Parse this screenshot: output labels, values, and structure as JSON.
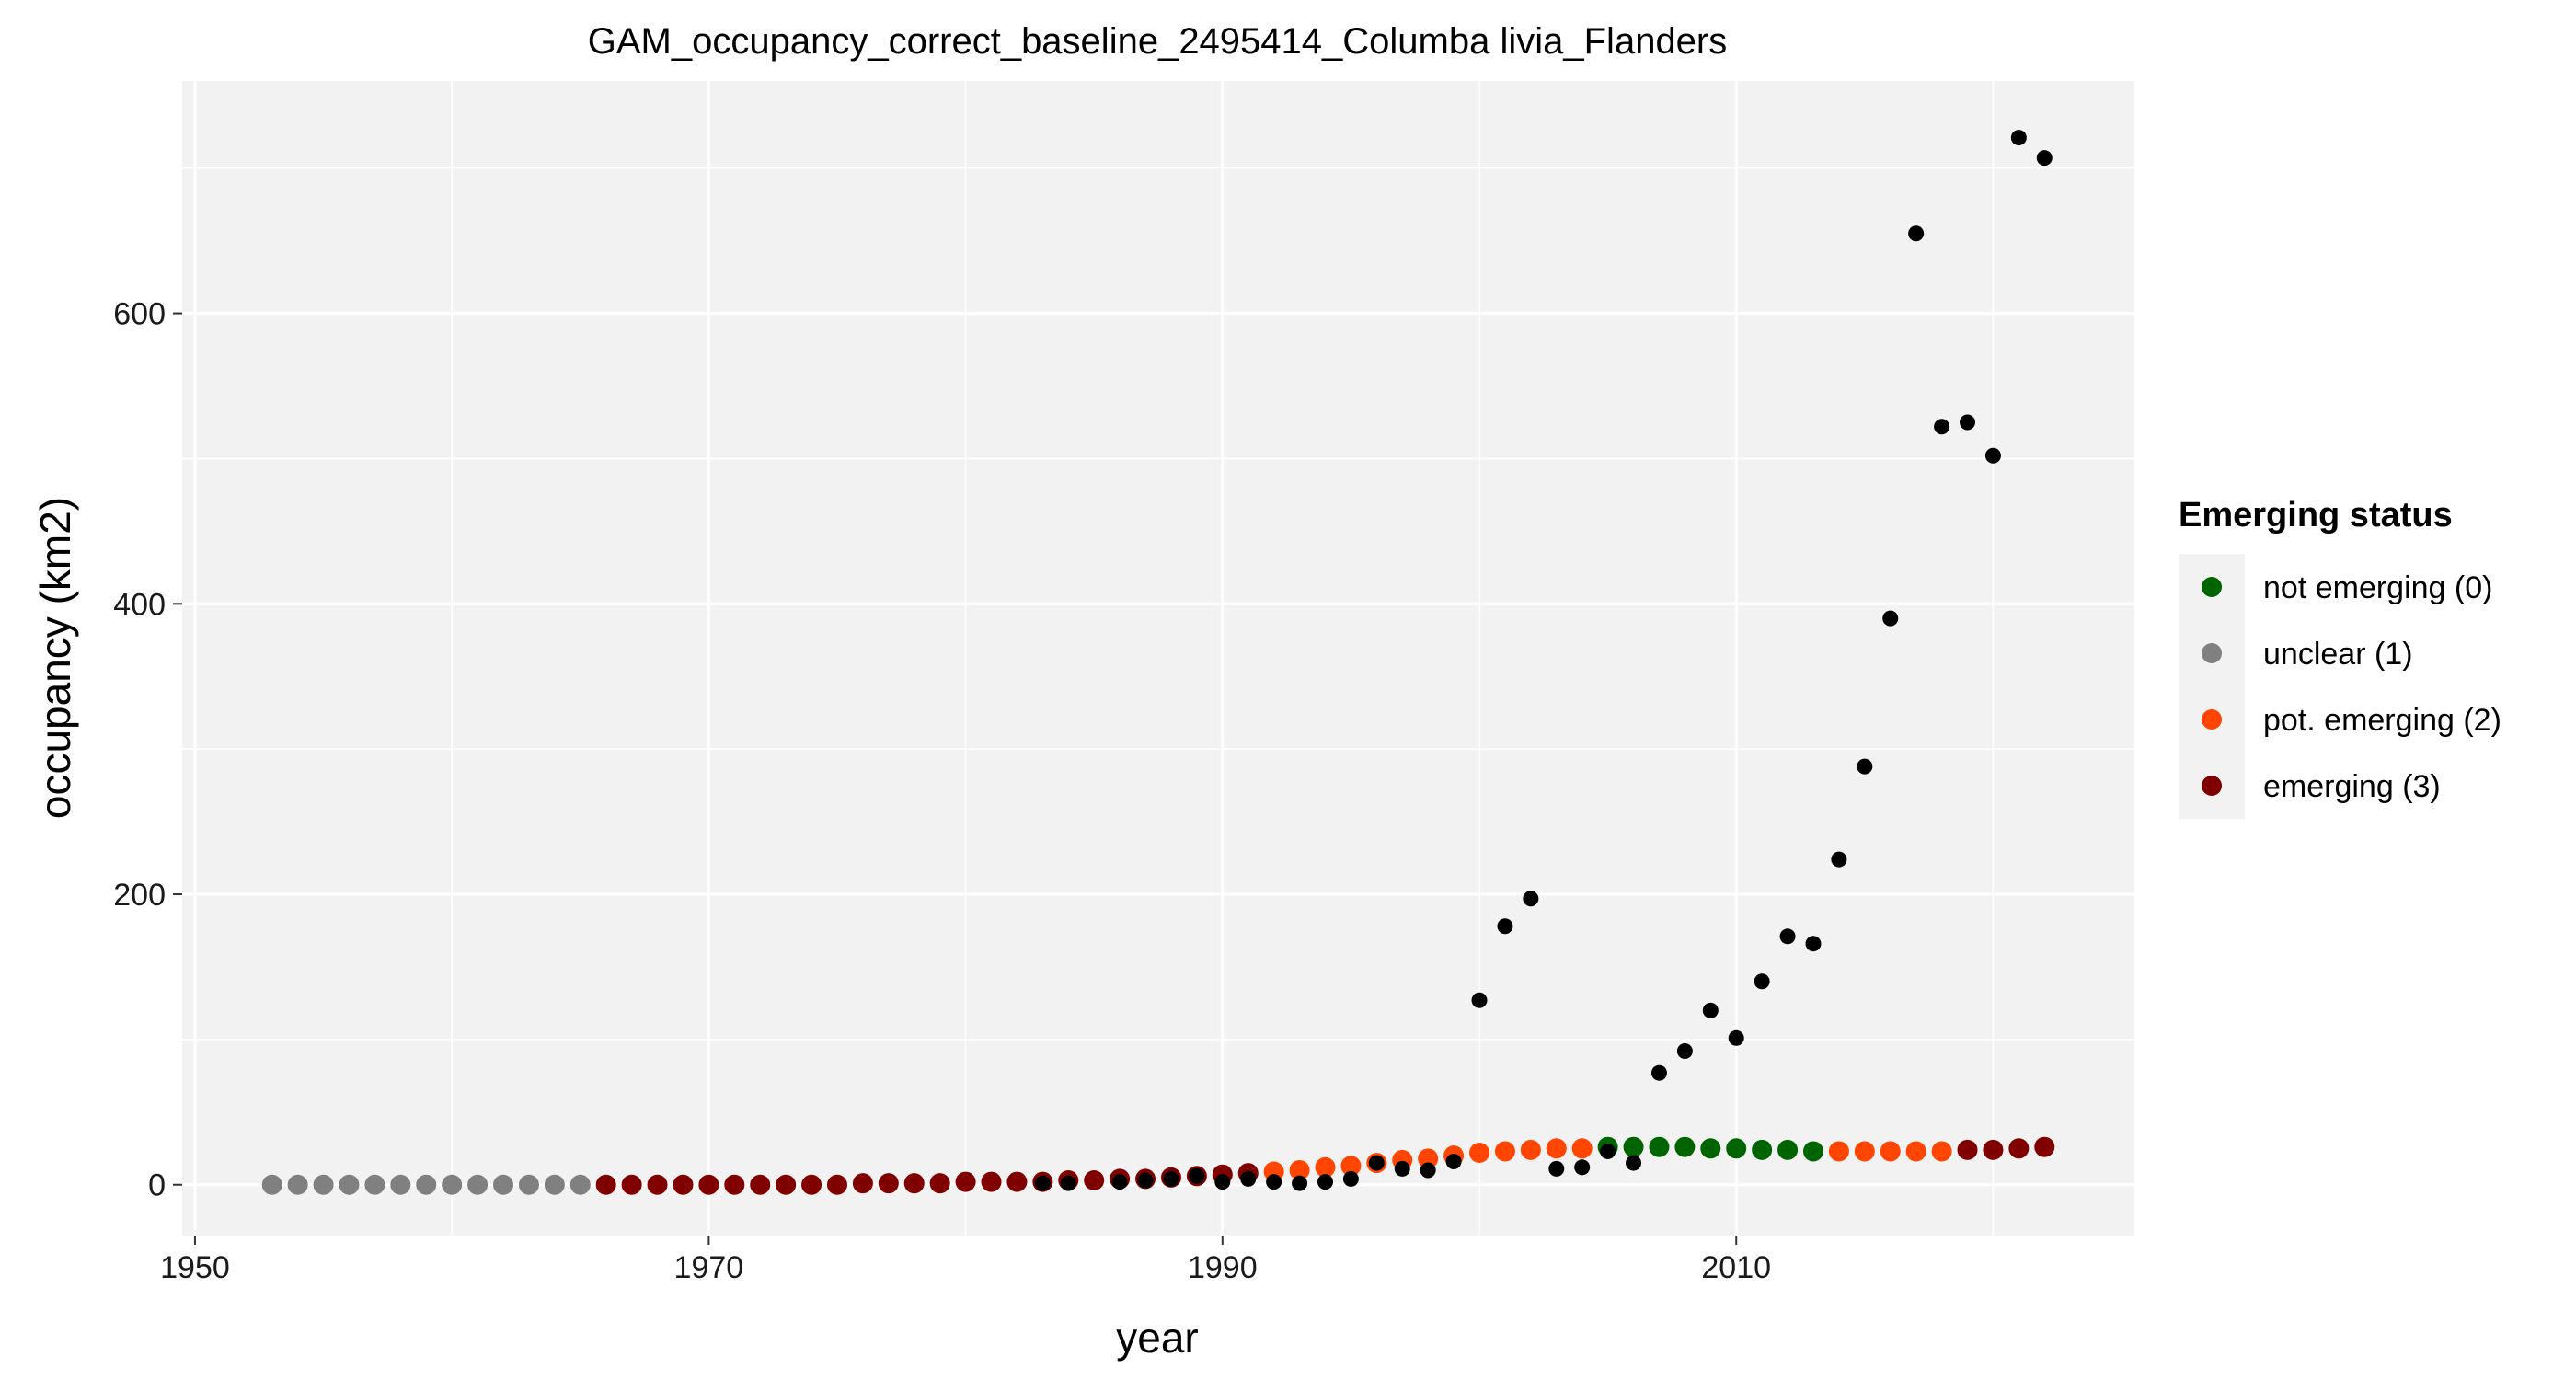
{
  "chart_data": {
    "type": "scatter",
    "title": "GAM_occupancy_correct_baseline_2495414_Columba livia_Flanders",
    "xlabel": "year",
    "ylabel": "occupancy (km2)",
    "xlim": [
      1949.5,
      2025.5
    ],
    "ylim": [
      -35,
      760
    ],
    "x_ticks": [
      1950,
      1970,
      1990,
      2010
    ],
    "y_ticks": [
      0,
      200,
      400,
      600
    ],
    "grid": true,
    "legend": {
      "title": "Emerging status",
      "position": "right",
      "entries": [
        {
          "label": "not emerging (0)",
          "color": "#006400"
        },
        {
          "label": "unclear (1)",
          "color": "#808080"
        },
        {
          "label": "pot. emerging (2)",
          "color": "#ff4500"
        },
        {
          "label": "emerging (3)",
          "color": "#800000"
        }
      ]
    },
    "observed_color": "#000000",
    "observed": {
      "x": [
        1983,
        1984,
        1986,
        1987,
        1988,
        1989,
        1990,
        1991,
        1992,
        1993,
        1994,
        1995,
        1996,
        1997,
        1998,
        1999,
        2000,
        2001,
        2002,
        2003,
        2004,
        2005,
        2006,
        2007,
        2008,
        2009,
        2010,
        2011,
        2012,
        2013,
        2014,
        2015,
        2016,
        2017,
        2018,
        2019,
        2020,
        2021,
        2022
      ],
      "y": [
        1,
        1,
        2,
        3,
        4,
        6,
        2,
        4,
        2,
        1,
        2,
        4,
        15,
        11,
        10,
        16,
        127,
        178,
        197,
        11,
        12,
        23,
        15,
        77,
        92,
        120,
        101,
        140,
        171,
        166,
        224,
        288,
        390,
        655,
        522,
        525,
        502,
        721,
        707
      ]
    },
    "fitted": {
      "x": [
        1953,
        1954,
        1955,
        1956,
        1957,
        1958,
        1959,
        1960,
        1961,
        1962,
        1963,
        1964,
        1965,
        1966,
        1967,
        1968,
        1969,
        1970,
        1971,
        1972,
        1973,
        1974,
        1975,
        1976,
        1977,
        1978,
        1979,
        1980,
        1981,
        1982,
        1983,
        1984,
        1985,
        1986,
        1987,
        1988,
        1989,
        1990,
        1991,
        1992,
        1993,
        1994,
        1995,
        1996,
        1997,
        1998,
        1999,
        2000,
        2001,
        2002,
        2003,
        2004,
        2005,
        2006,
        2007,
        2008,
        2009,
        2010,
        2011,
        2012,
        2013,
        2014,
        2015,
        2016,
        2017,
        2018,
        2019,
        2020,
        2021,
        2022
      ],
      "y": [
        0,
        0,
        0,
        0,
        0,
        0,
        0,
        0,
        0,
        0,
        0,
        0,
        0,
        0,
        0,
        0,
        0,
        0,
        0,
        0,
        0,
        0,
        0,
        1,
        1,
        1,
        1,
        2,
        2,
        2,
        2,
        3,
        3,
        4,
        4,
        5,
        6,
        7,
        8,
        9,
        10,
        12,
        13,
        15,
        17,
        18,
        20,
        22,
        23,
        24,
        25,
        25,
        26,
        26,
        26,
        26,
        25,
        25,
        24,
        24,
        23,
        23,
        23,
        23,
        23,
        23,
        24,
        24,
        25,
        26
      ],
      "status": [
        1,
        1,
        1,
        1,
        1,
        1,
        1,
        1,
        1,
        1,
        1,
        1,
        1,
        3,
        3,
        3,
        3,
        3,
        3,
        3,
        3,
        3,
        3,
        3,
        3,
        3,
        3,
        3,
        3,
        3,
        3,
        3,
        3,
        3,
        3,
        3,
        3,
        3,
        3,
        2,
        2,
        2,
        2,
        2,
        2,
        2,
        2,
        2,
        2,
        2,
        2,
        2,
        0,
        0,
        0,
        0,
        0,
        0,
        0,
        0,
        0,
        2,
        2,
        2,
        2,
        2,
        3,
        3,
        3,
        3
      ]
    }
  }
}
